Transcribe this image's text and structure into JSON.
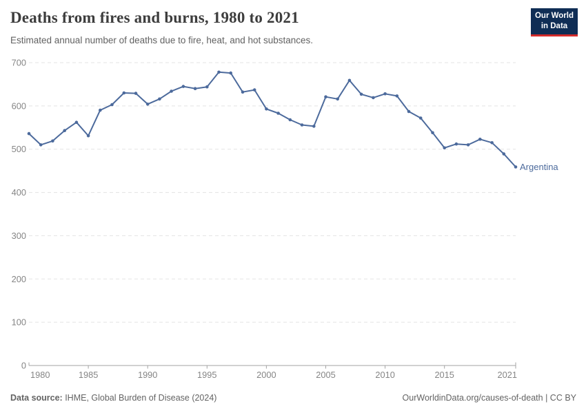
{
  "header": {
    "title": "Deaths from fires and burns, 1980 to 2021",
    "subtitle": "Estimated annual number of deaths due to fire, heat, and hot substances.",
    "logo_line1": "Our World",
    "logo_line2": "in Data"
  },
  "footer": {
    "datasource_label": "Data source:",
    "datasource_value": " IHME, Global Burden of Disease (2024)",
    "url": "OurWorldinData.org/causes-of-death",
    "separator": " | ",
    "license": "CC BY"
  },
  "chart_data": {
    "type": "line",
    "title": "Deaths from fires and burns, 1980 to 2021",
    "subtitle": "Estimated annual number of deaths due to fire, heat, and hot substances.",
    "xlabel": "",
    "ylabel": "",
    "xlim": [
      1980,
      2021
    ],
    "ylim": [
      0,
      700
    ],
    "xticks": [
      1980,
      1985,
      1990,
      1995,
      2000,
      2005,
      2010,
      2015,
      2021
    ],
    "yticks": [
      0,
      100,
      200,
      300,
      400,
      500,
      600,
      700
    ],
    "grid": "horizontal-dashed",
    "legend_position": "end-of-line-label",
    "colors": {
      "line": "#4C6A9C",
      "gridline": "#e3e3e3",
      "axis": "#a3a3a3",
      "tick_label": "#858585"
    },
    "series": [
      {
        "name": "Argentina",
        "color": "#4C6A9C",
        "x": [
          1980,
          1981,
          1982,
          1983,
          1984,
          1985,
          1986,
          1987,
          1988,
          1989,
          1990,
          1991,
          1992,
          1993,
          1994,
          1995,
          1996,
          1997,
          1998,
          1999,
          2000,
          2001,
          2002,
          2003,
          2004,
          2005,
          2006,
          2007,
          2008,
          2009,
          2010,
          2011,
          2012,
          2013,
          2014,
          2015,
          2016,
          2017,
          2018,
          2019,
          2020,
          2021
        ],
        "values": [
          536,
          510,
          519,
          543,
          562,
          531,
          590,
          603,
          630,
          629,
          604,
          616,
          634,
          645,
          640,
          644,
          678,
          676,
          632,
          637,
          593,
          583,
          568,
          556,
          553,
          621,
          616,
          659,
          627,
          619,
          628,
          623,
          587,
          572,
          538,
          503,
          512,
          510,
          523,
          515,
          489,
          459
        ]
      }
    ]
  }
}
